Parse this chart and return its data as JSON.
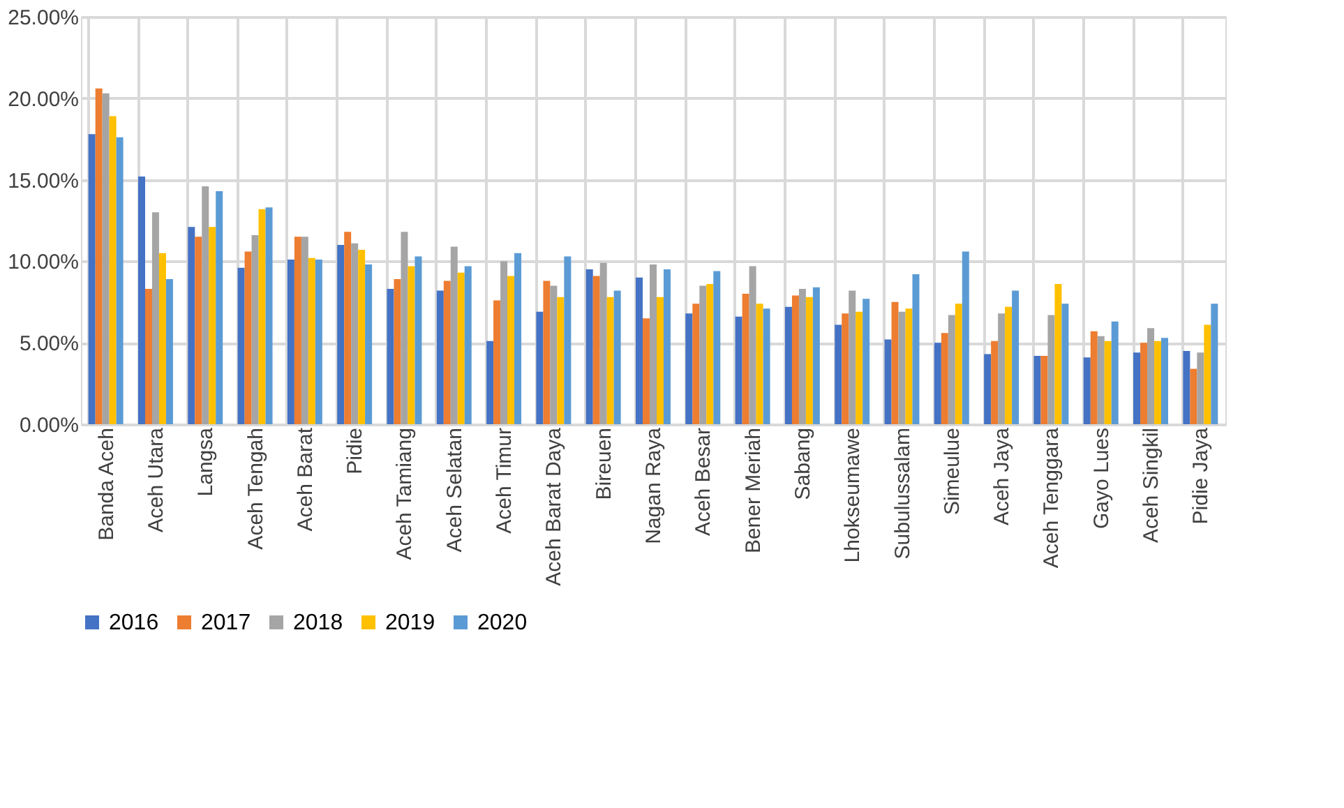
{
  "chart_data": {
    "type": "bar",
    "categories": [
      "Banda Aceh",
      "Aceh Utara",
      "Langsa",
      "Aceh Tengah",
      "Aceh Barat",
      "Pidie",
      "Aceh Tamiang",
      "Aceh Selatan",
      "Aceh Timur",
      "Aceh Barat Daya",
      "Bireuen",
      "Nagan Raya",
      "Aceh Besar",
      "Bener Meriah",
      "Sabang",
      "Lhokseumawe",
      "Subulussalam",
      "Simeulue",
      "Aceh Jaya",
      "Aceh Tenggara",
      "Gayo Lues",
      "Aceh Singkil",
      "Pidie Jaya"
    ],
    "series": [
      {
        "name": "2016",
        "color": "#4472c4",
        "values": [
          17.8,
          15.2,
          12.1,
          9.6,
          10.1,
          11.0,
          8.3,
          8.2,
          5.1,
          6.9,
          9.5,
          9.0,
          6.8,
          6.6,
          7.2,
          6.1,
          5.2,
          5.0,
          4.3,
          4.2,
          4.1,
          4.4,
          4.5
        ]
      },
      {
        "name": "2017",
        "color": "#ed7d31",
        "values": [
          20.6,
          8.3,
          11.5,
          10.6,
          11.5,
          11.8,
          8.9,
          8.8,
          7.6,
          8.8,
          9.1,
          6.5,
          7.4,
          8.0,
          7.9,
          6.8,
          7.5,
          5.6,
          5.1,
          4.2,
          5.7,
          5.0,
          3.4
        ]
      },
      {
        "name": "2018",
        "color": "#a5a5a5",
        "values": [
          20.3,
          13.0,
          14.6,
          11.6,
          11.5,
          11.1,
          11.8,
          10.9,
          10.0,
          8.5,
          9.9,
          9.8,
          8.5,
          9.7,
          8.3,
          8.2,
          6.9,
          6.7,
          6.8,
          6.7,
          5.4,
          5.9,
          4.4
        ]
      },
      {
        "name": "2019",
        "color": "#ffc000",
        "values": [
          18.9,
          10.5,
          12.1,
          13.2,
          10.2,
          10.7,
          9.7,
          9.3,
          9.1,
          7.8,
          7.8,
          7.8,
          8.6,
          7.4,
          7.8,
          6.9,
          7.1,
          7.4,
          7.2,
          8.6,
          5.1,
          5.1,
          6.1
        ]
      },
      {
        "name": "2020",
        "color": "#5b9bd5",
        "values": [
          17.6,
          8.9,
          14.3,
          13.3,
          10.1,
          9.8,
          10.3,
          9.7,
          10.5,
          10.3,
          8.2,
          9.5,
          9.4,
          7.1,
          8.4,
          7.7,
          9.2,
          10.6,
          8.2,
          7.4,
          6.3,
          5.3,
          7.4
        ]
      }
    ],
    "ylim": [
      0,
      25
    ],
    "yticks": [
      {
        "value": 0,
        "label": "0.00%"
      },
      {
        "value": 5,
        "label": "5.00%"
      },
      {
        "value": 10,
        "label": "10.00%"
      },
      {
        "value": 15,
        "label": "15.00%"
      },
      {
        "value": 20,
        "label": "20.00%"
      },
      {
        "value": 25,
        "label": "25.00%"
      }
    ],
    "grid": true,
    "legend": "bottom"
  }
}
